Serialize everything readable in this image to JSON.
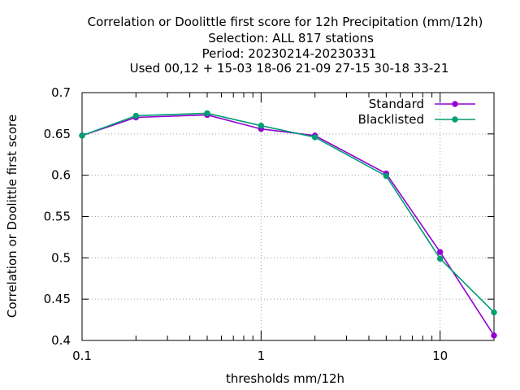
{
  "chart_data": {
    "type": "line",
    "title_lines": [
      "Correlation or Doolittle first score  for 12h Precipitation (mm/12h)",
      "Selection: ALL    817 stations",
      "Period: 20230214-20230331",
      "Used  00,12  + 15-03 18-06 21-09 27-15 30-18 33-21"
    ],
    "xlabel": "thresholds mm/12h",
    "ylabel": "Correlation or Doolittle first score",
    "x_scale": "log",
    "xlim": [
      0.1,
      20
    ],
    "ylim": [
      0.4,
      0.7
    ],
    "x_ticks": [
      {
        "value": 0.1,
        "label": "0.1"
      },
      {
        "value": 1,
        "label": "1"
      },
      {
        "value": 10,
        "label": "10"
      }
    ],
    "y_ticks": [
      {
        "value": 0.4,
        "label": "0.4"
      },
      {
        "value": 0.45,
        "label": "0.45"
      },
      {
        "value": 0.5,
        "label": "0.5"
      },
      {
        "value": 0.55,
        "label": "0.55"
      },
      {
        "value": 0.6,
        "label": "0.6"
      },
      {
        "value": 0.65,
        "label": "0.65"
      },
      {
        "value": 0.7,
        "label": "0.7"
      }
    ],
    "grid": true,
    "legend_position": "top-right",
    "x": [
      0.1,
      0.2,
      0.5,
      1,
      2,
      5,
      10,
      20
    ],
    "series": [
      {
        "name": "Standard",
        "color": "#9400d3",
        "values": [
          0.648,
          0.67,
          0.673,
          0.656,
          0.648,
          0.602,
          0.507,
          0.406
        ]
      },
      {
        "name": "Blacklisted",
        "color": "#009e73",
        "values": [
          0.648,
          0.672,
          0.675,
          0.66,
          0.646,
          0.599,
          0.499,
          0.434
        ]
      }
    ]
  }
}
